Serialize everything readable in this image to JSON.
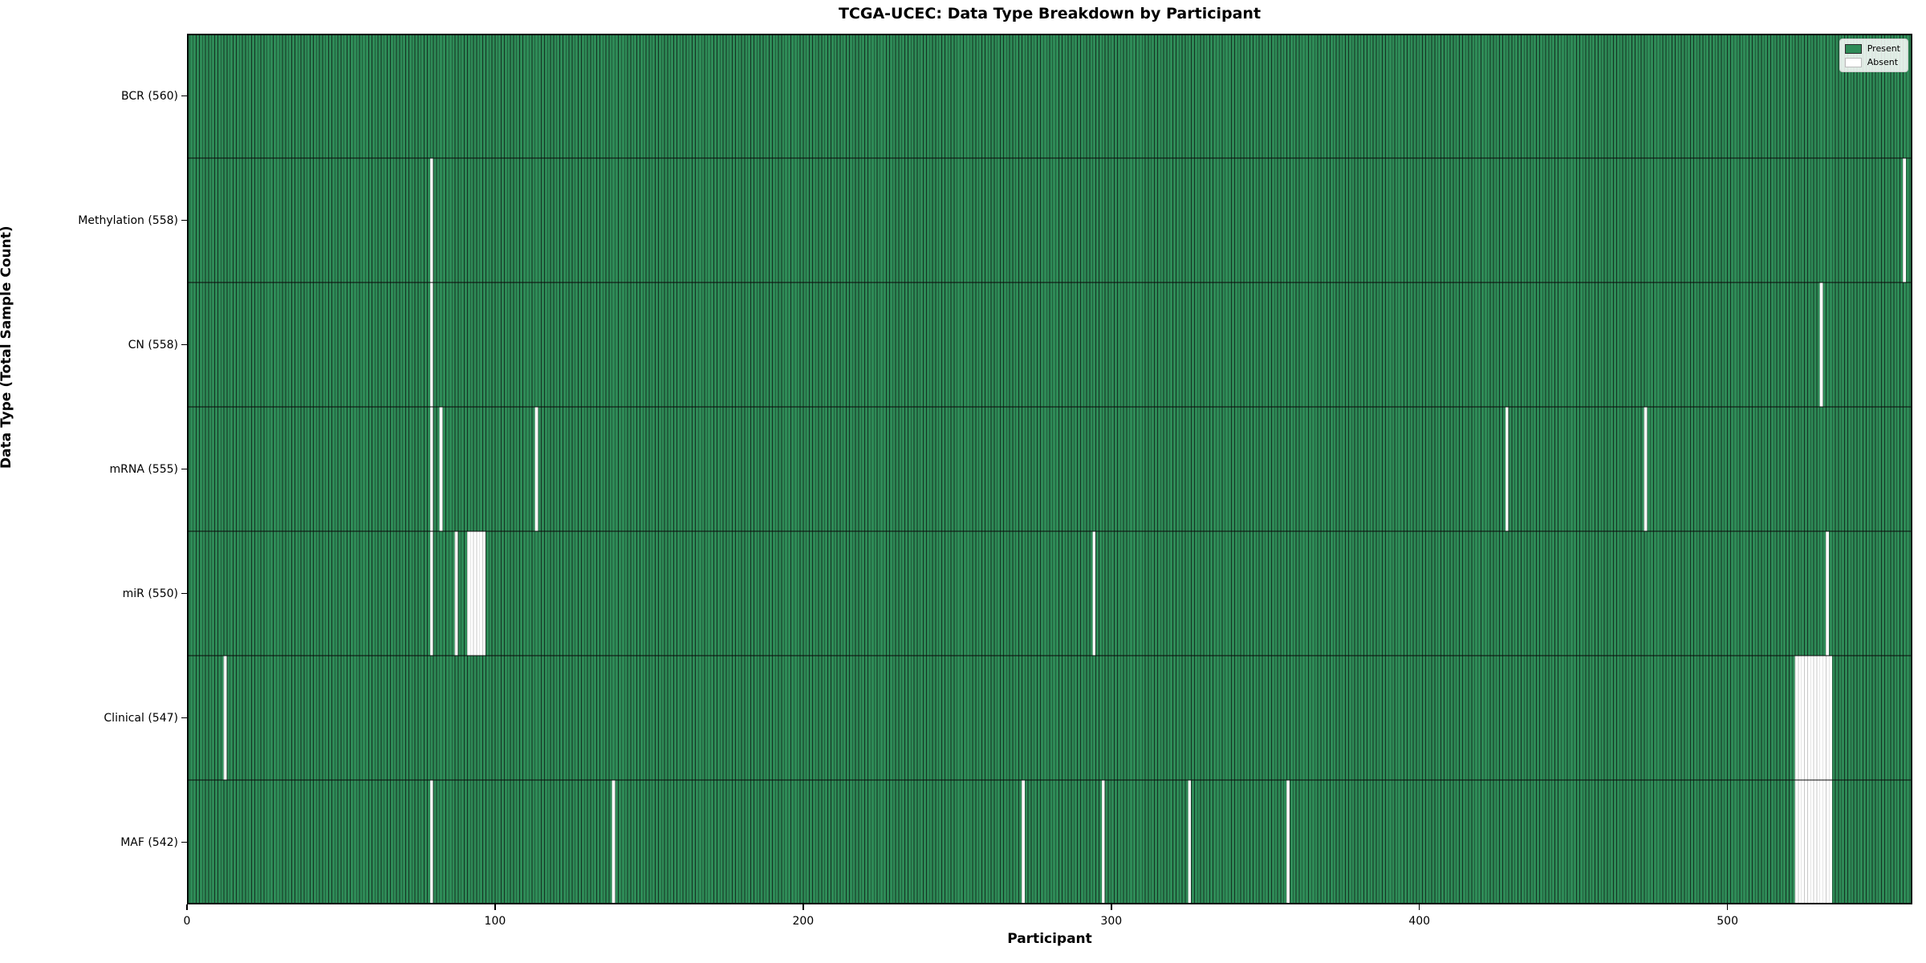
{
  "chart_data": {
    "type": "heatmap",
    "title": "TCGA-UCEC: Data Type Breakdown by Participant",
    "xlabel": "Participant",
    "ylabel": "Data Type (Total Sample Count)",
    "xlim": [
      0,
      560
    ],
    "x_ticks": [
      0,
      100,
      200,
      300,
      400,
      500
    ],
    "n_participants": 560,
    "grid": false,
    "rows": [
      {
        "label": "BCR (560)",
        "data_type": "BCR",
        "total": 560,
        "absent": []
      },
      {
        "label": "Methylation (558)",
        "data_type": "Methylation",
        "total": 558,
        "absent": [
          79,
          557
        ]
      },
      {
        "label": "CN (558)",
        "data_type": "CN",
        "total": 558,
        "absent": [
          79,
          530
        ]
      },
      {
        "label": "mRNA (555)",
        "data_type": "mRNA",
        "total": 555,
        "absent": [
          79,
          82,
          113,
          428,
          473
        ]
      },
      {
        "label": "miR (550)",
        "data_type": "miR",
        "total": 550,
        "absent": [
          79,
          87,
          91,
          92,
          93,
          94,
          95,
          96,
          294,
          532
        ]
      },
      {
        "label": "Clinical (547)",
        "data_type": "Clinical",
        "total": 547,
        "absent": [
          12,
          522,
          523,
          524,
          525,
          526,
          527,
          528,
          529,
          530,
          531,
          532,
          533
        ]
      },
      {
        "label": "MAF (542)",
        "data_type": "MAF",
        "total": 542,
        "absent": [
          79,
          138,
          271,
          297,
          325,
          357,
          522,
          523,
          524,
          525,
          526,
          527,
          528,
          529,
          530,
          531,
          532,
          533
        ]
      }
    ],
    "legend": {
      "position": "upper right",
      "entries": [
        {
          "label": "Present",
          "color": "#2e8b57",
          "edge": "#2b2b2b"
        },
        {
          "label": "Absent",
          "color": "#ffffff",
          "edge": "#bbbbbb"
        }
      ]
    },
    "colors": {
      "present": "#2e8b57",
      "present_edge": "#143122",
      "absent": "#ffffff",
      "absent_edge": "#c8c8c8",
      "separator": "#0a0a0a",
      "border": "#000000",
      "background": "#ffffff"
    }
  }
}
